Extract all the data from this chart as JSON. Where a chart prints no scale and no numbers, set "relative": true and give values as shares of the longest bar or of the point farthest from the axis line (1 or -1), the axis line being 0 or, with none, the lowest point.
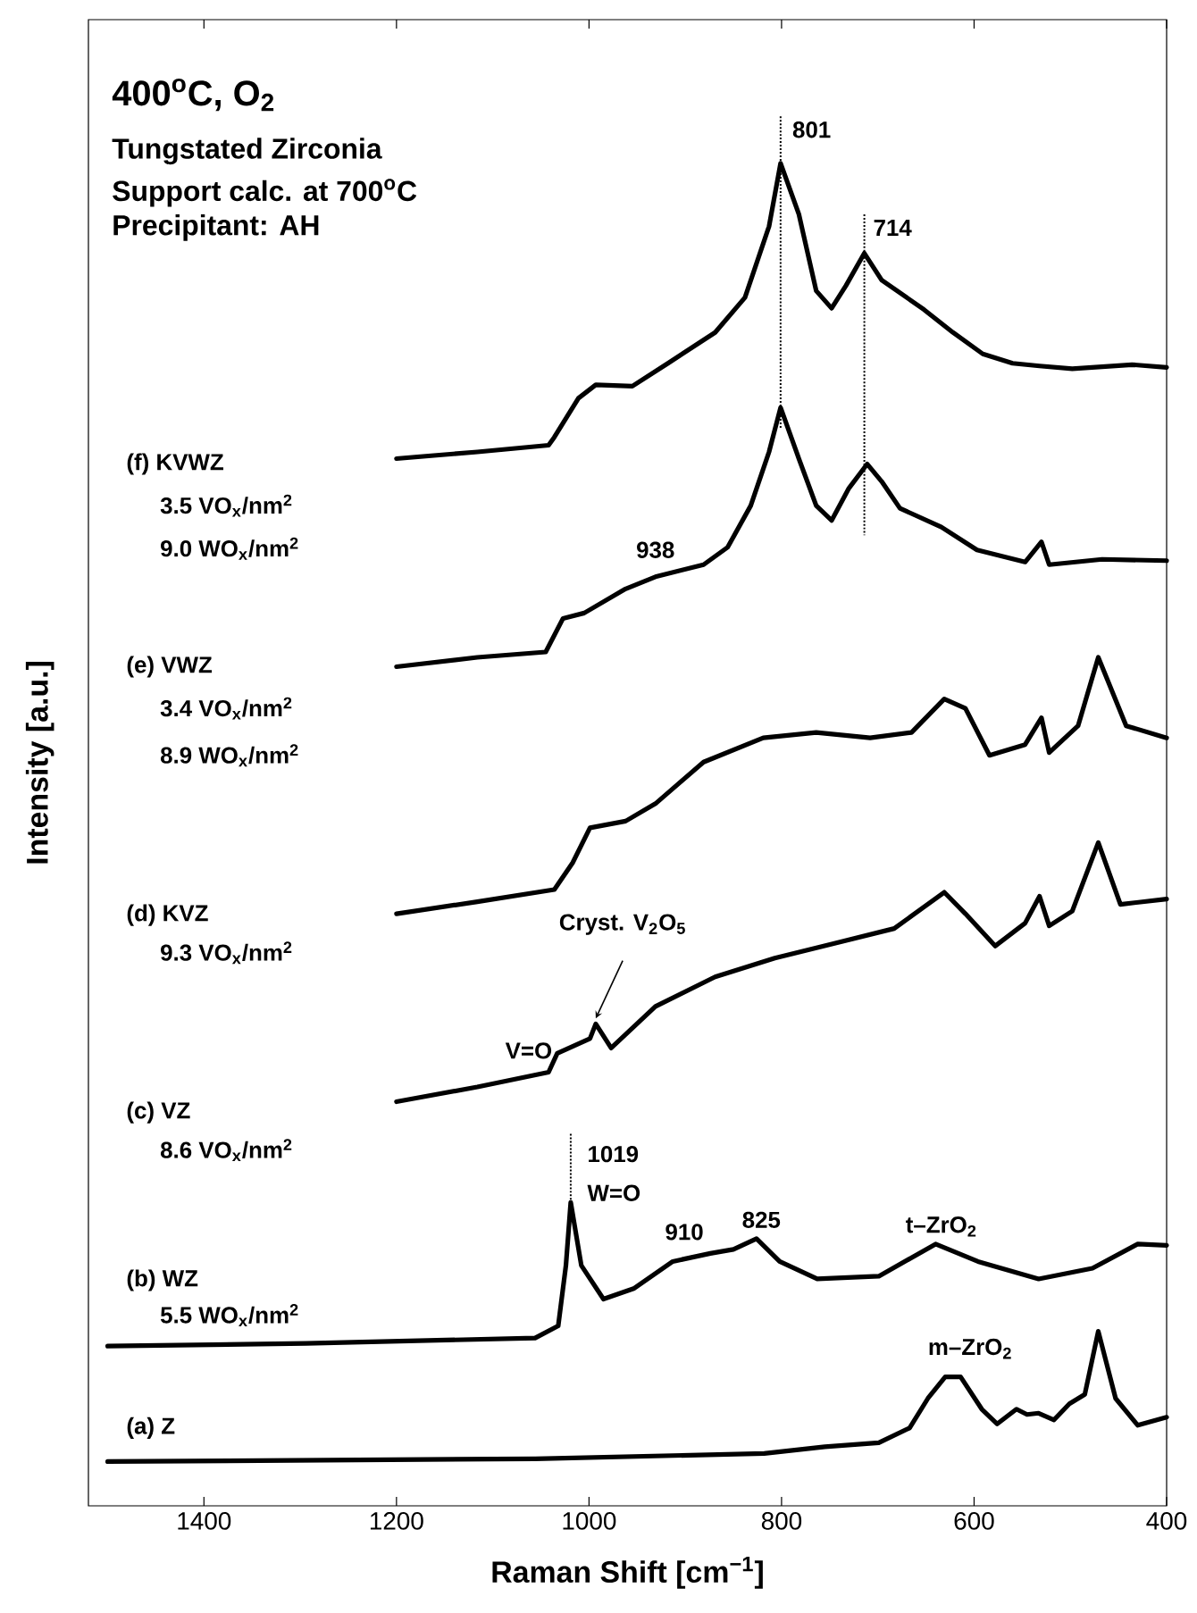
{
  "chart_data": {
    "type": "line",
    "relative": true,
    "title": "400$^{o}$C, O$_{2}$",
    "subtitle": "Tungstated Zirconia",
    "xlabel": "Raman Shift [cm$^{−1}$]",
    "ylabel": "Intensity [a.u.]",
    "xlim": [
      1520,
      400
    ],
    "xticks": [
      1400,
      1200,
      1000,
      800,
      600,
      400
    ],
    "series": [
      {
        "color": "#000000",
        "x": [
          1200,
          1116,
          1042,
          1036,
          1011,
          993,
          955,
          918,
          869,
          838,
          813,
          801,
          782,
          764,
          748,
          733,
          714,
          696,
          652,
          622,
          591,
          560,
          532,
          498,
          436,
          400
        ],
        "values": [
          0.78,
          0.785,
          0.79,
          0.796,
          0.825,
          0.835,
          0.834,
          0.851,
          0.874,
          0.9,
          0.953,
          1.0,
          0.962,
          0.905,
          0.892,
          0.909,
          0.933,
          0.913,
          0.891,
          0.874,
          0.858,
          0.851,
          0.849,
          0.847,
          0.85,
          0.848
        ]
      },
      {
        "color": "#000000",
        "x": [
          1200,
          1116,
          1045,
          1027,
          1005,
          962,
          931,
          881,
          856,
          832,
          813,
          801,
          782,
          764,
          748,
          730,
          711,
          696,
          677,
          634,
          597,
          547,
          530,
          522,
          467,
          400
        ],
        "values": [
          0.625,
          0.632,
          0.636,
          0.661,
          0.665,
          0.683,
          0.692,
          0.701,
          0.714,
          0.745,
          0.785,
          0.818,
          0.78,
          0.745,
          0.734,
          0.758,
          0.776,
          0.763,
          0.743,
          0.729,
          0.712,
          0.703,
          0.718,
          0.701,
          0.705,
          0.704
        ]
      },
      {
        "color": "#000000",
        "x": [
          1200,
          1116,
          1036,
          1017,
          999,
          962,
          931,
          881,
          819,
          764,
          708,
          665,
          631,
          609,
          584,
          547,
          530,
          522,
          492,
          471,
          442,
          400
        ],
        "values": [
          0.441,
          0.45,
          0.459,
          0.479,
          0.505,
          0.51,
          0.523,
          0.554,
          0.572,
          0.576,
          0.572,
          0.576,
          0.601,
          0.594,
          0.559,
          0.567,
          0.587,
          0.561,
          0.581,
          0.632,
          0.581,
          0.572
        ]
      },
      {
        "color": "#000000",
        "x": [
          1200,
          1116,
          1042,
          1033,
          999,
          993,
          977,
          931,
          869,
          807,
          745,
          683,
          631,
          609,
          578,
          547,
          532,
          522,
          498,
          471,
          448,
          400
        ],
        "values": [
          0.301,
          0.312,
          0.323,
          0.337,
          0.348,
          0.359,
          0.341,
          0.372,
          0.394,
          0.408,
          0.419,
          0.43,
          0.457,
          0.441,
          0.417,
          0.434,
          0.454,
          0.432,
          0.443,
          0.494,
          0.448,
          0.452
        ]
      },
      {
        "color": "#000000",
        "x": [
          1500,
          1294,
          1056,
          1032,
          1024,
          1019,
          1008,
          985,
          953,
          913,
          874,
          850,
          826,
          802,
          763,
          699,
          640,
          596,
          533,
          477,
          430,
          400
        ],
        "values": [
          0.119,
          0.121,
          0.125,
          0.134,
          0.179,
          0.226,
          0.179,
          0.154,
          0.162,
          0.182,
          0.188,
          0.191,
          0.199,
          0.182,
          0.169,
          0.171,
          0.195,
          0.182,
          0.169,
          0.177,
          0.195,
          0.194
        ]
      },
      {
        "color": "#000000",
        "x": [
          1500,
          1056,
          818,
          755,
          699,
          667,
          648,
          630,
          614,
          592,
          576,
          556,
          545,
          533,
          517,
          501,
          485,
          471,
          453,
          430,
          400
        ],
        "values": [
          0.033,
          0.035,
          0.039,
          0.044,
          0.047,
          0.058,
          0.08,
          0.096,
          0.096,
          0.072,
          0.061,
          0.072,
          0.068,
          0.069,
          0.064,
          0.076,
          0.083,
          0.13,
          0.08,
          0.06,
          0.066
        ]
      }
    ],
    "annotations": [
      "Support calc. at 700$^{o}$C",
      "Precipitant: AH",
      "(f) KVWZ",
      "3.5 VO$_{x}$/nm$^{2}$",
      "9.0 WO$_{x}$/nm$^{2}$",
      "(e) VWZ",
      "3.4 VO$_{x}$/nm$^{2}$",
      "8.9 WO$_{x}$/nm$^{2}$",
      "(d) KVZ",
      "9.3 VO$_{x}$/nm$^{2}$",
      "(c) VZ",
      "8.6 VO$_{x}$/nm$^{2}$",
      "(b) WZ",
      "5.5 WO$_{x}$/nm$^{2}$",
      "(a) Z",
      {
        "text": "801",
        "x": 801,
        "y": 1.0
      },
      {
        "text": "714",
        "x": 714,
        "y": 0.933
      },
      {
        "text": "938",
        "x": 938,
        "y": 0.69
      },
      {
        "text": "Cryst. V$_{2}$O$_{5}$",
        "x": 993,
        "y": 0.359
      },
      {
        "text": "V=O",
        "x": 1033,
        "y": 0.337
      },
      {
        "text": "1019",
        "x": 1019,
        "y": 0.226
      },
      {
        "text": "W=O",
        "x": 1019,
        "y": 0.226
      },
      {
        "text": "910",
        "x": 910,
        "y": 0.188
      },
      {
        "text": "825",
        "x": 825,
        "y": 0.199
      },
      {
        "text": "t–ZrO$_{2}$",
        "x": 640,
        "y": 0.195
      },
      {
        "text": "m–ZrO$_{2}$",
        "x": 620,
        "y": 0.096
      }
    ]
  }
}
